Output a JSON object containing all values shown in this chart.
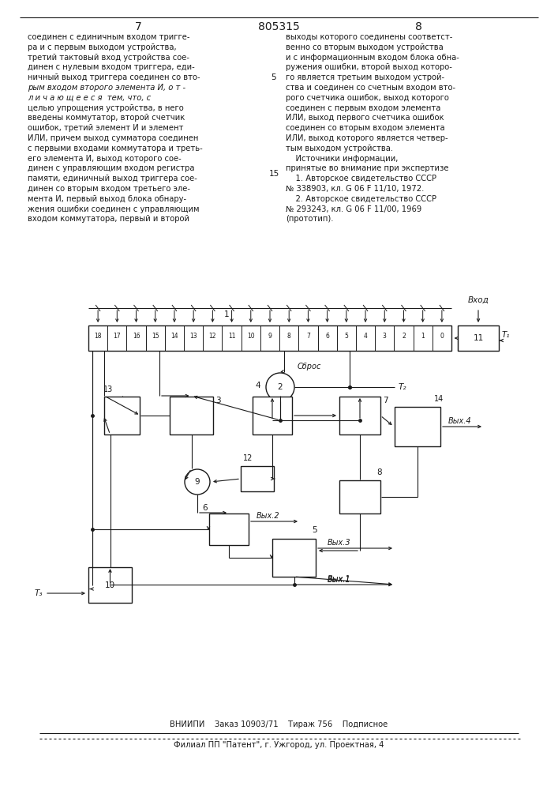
{
  "page_number_left": "7",
  "patent_number": "805315",
  "page_number_right": "8",
  "left_column_text": [
    "соединен с единичным входом тригге-",
    "ра и с первым выходом устройства,",
    "третий тактовый вход устройства сое-",
    "динен с нулевым входом триггера, еди-",
    "ничный выход триггера соединен со вто-",
    "рым входом второго элемента И, о т -",
    "л и ч а ю щ е е с я  тем, что, с",
    "целью упрощения устройства, в него",
    "введены коммутатор, второй счетчик",
    "ошибок, третий элемент И и элемент",
    "ИЛИ, причем выход сумматора соединен",
    "с первыми входами коммутатора и треть-",
    "его элемента И, выход которого сое-",
    "динен с управляющим входом регистра",
    "памяти, единичный выход триггера сое-",
    "динен со вторым входом третьего эле-",
    "мента И, первый выход блока обнару-",
    "жения ошибки соединен с управляющим",
    "входом коммутатора, первый и второй"
  ],
  "right_column_text": [
    "выходы которого соединены соответст-",
    "венно со вторым выходом устройства",
    "и с информационным входом блока обна-",
    "ружения ошибки, второй выход которо-",
    "го является третьим выходом устрой-",
    "ства и соединен со счетным входом вто-",
    "рого счетчика ошибок, выход которого",
    "соединен с первым входом элемента",
    "ИЛИ, выход первого счетчика ошибок",
    "соединен со вторым входом элемента",
    "ИЛИ, выход которого является четвер-",
    "тым выходом устройства.",
    "    Источники информации,",
    "принятые во внимание при экспертизе",
    "    1. Авторское свидетельство СССР",
    "№ 338903, кл. G 06 F 11/10, 1972.",
    "    2. Авторское свидетельство СССР",
    "№ 293243, кл. G 06 F 11/00, 1969",
    "(прототип)."
  ],
  "line5_row": 5,
  "line15_row": 14,
  "footer_line1": "ВНИИПИ    Заказ 10903/71    Тираж 756    Подписное",
  "footer_line2": "Филиал ПП \"Патент\", г. Ужгород, ул. Проектная, 4",
  "bg_color": "#ffffff",
  "text_color": "#1a1a1a",
  "dc": "#1a1a1a"
}
